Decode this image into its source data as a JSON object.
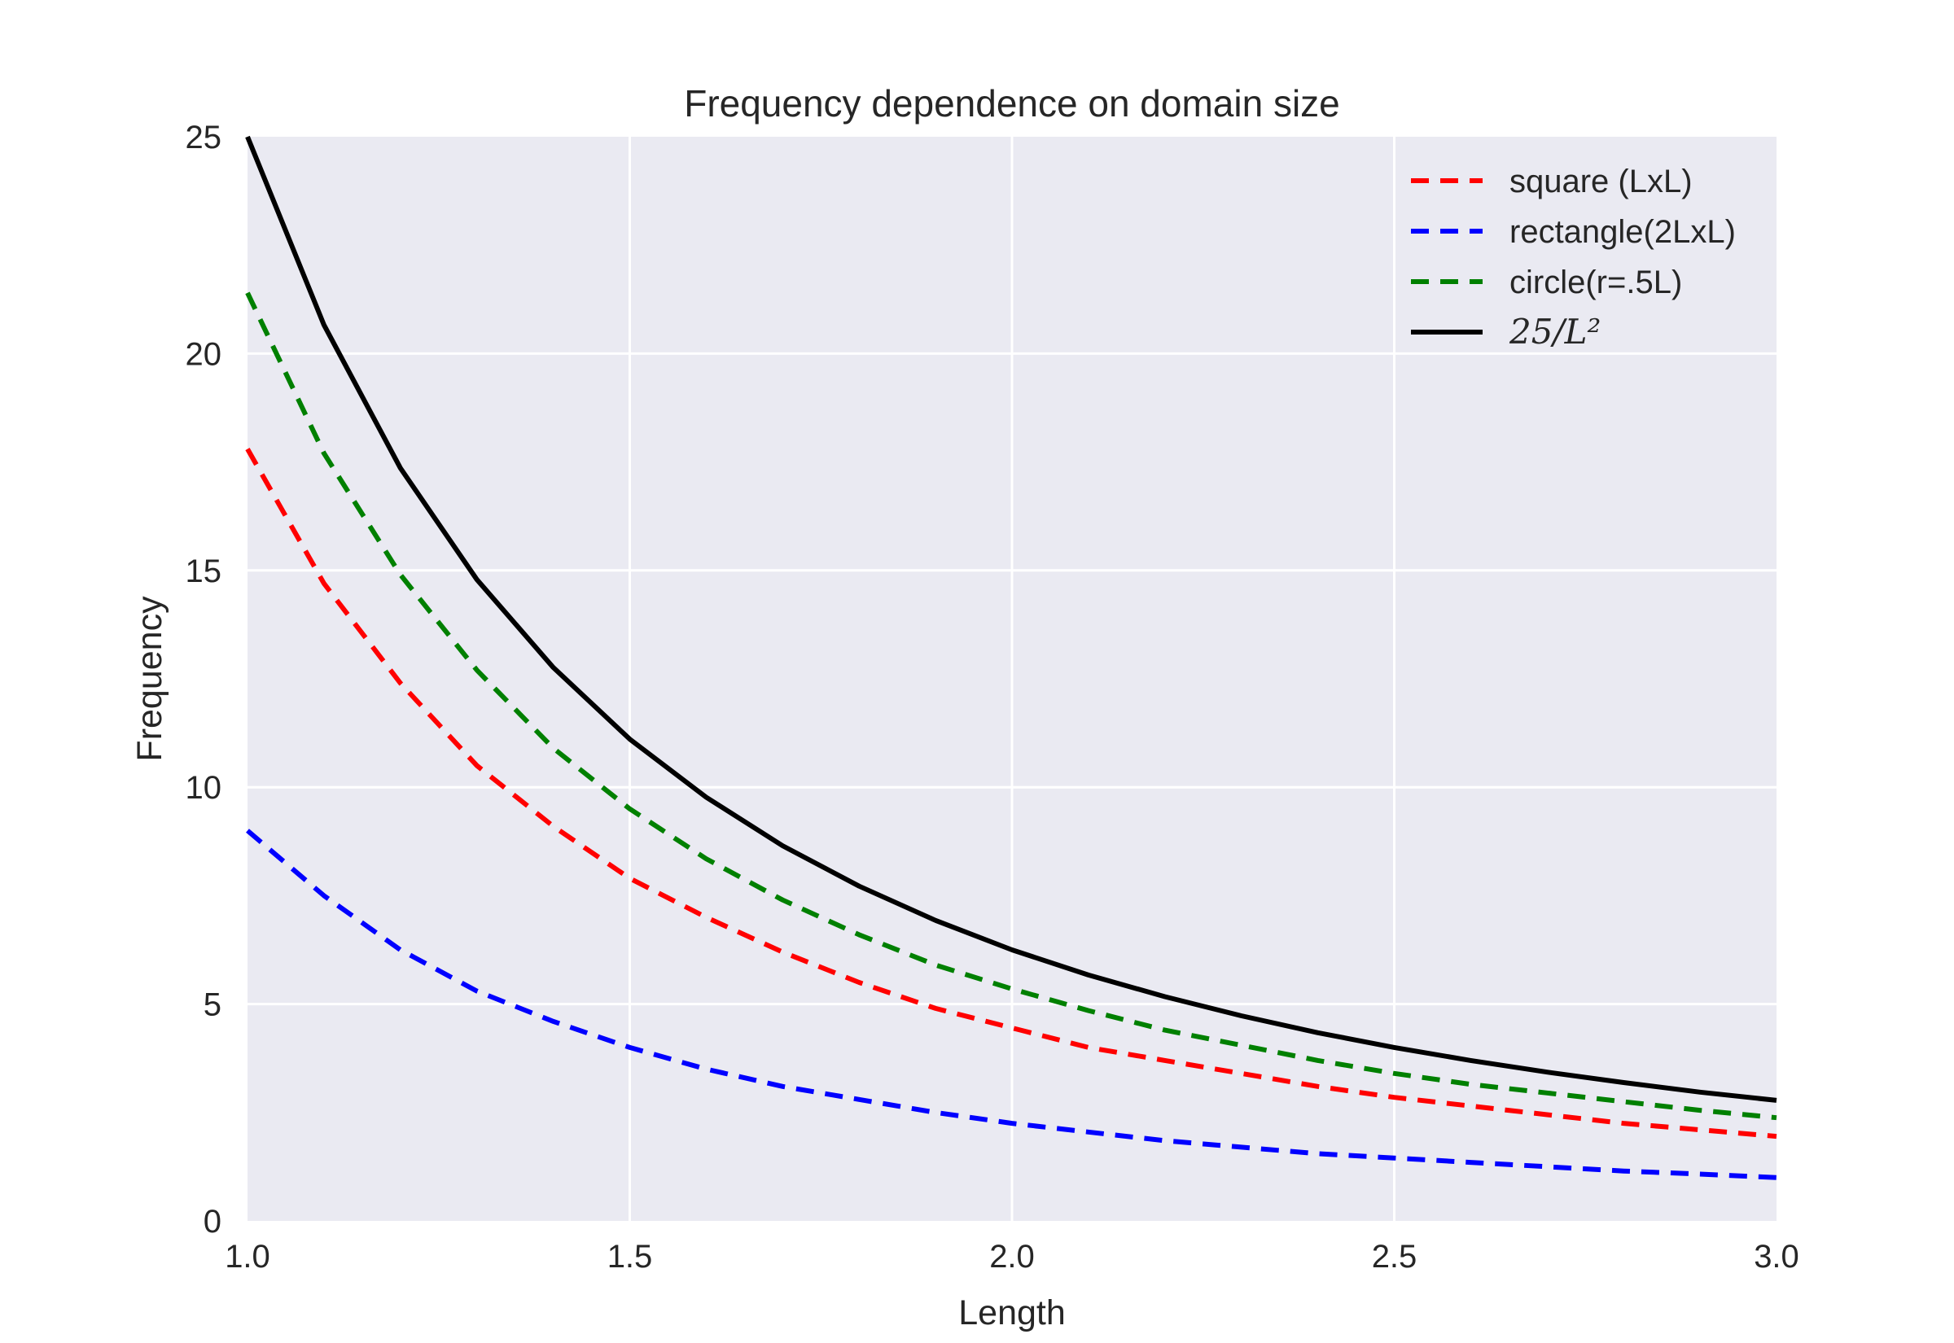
{
  "chart_data": {
    "type": "line",
    "title": "Frequency dependence on domain size",
    "xlabel": "Length",
    "ylabel": "Frequency",
    "xlim": [
      1.0,
      3.0
    ],
    "ylim": [
      0,
      25
    ],
    "xticks": [
      1.0,
      1.5,
      2.0,
      2.5,
      3.0
    ],
    "xtick_labels": [
      "1.0",
      "1.5",
      "2.0",
      "2.5",
      "3.0"
    ],
    "yticks": [
      0,
      5,
      10,
      15,
      20,
      25
    ],
    "ytick_labels": [
      "0",
      "5",
      "10",
      "15",
      "20",
      "25"
    ],
    "grid": true,
    "legend_position": "top-right",
    "x": [
      1.0,
      1.1,
      1.2,
      1.3,
      1.4,
      1.5,
      1.6,
      1.7,
      1.8,
      1.9,
      2.0,
      2.1,
      2.2,
      2.3,
      2.4,
      2.5,
      2.6,
      2.7,
      2.8,
      2.9,
      3.0
    ],
    "series": [
      {
        "name": "square (LxL)",
        "color": "#ff0000",
        "style": "dashed",
        "values": [
          17.8,
          14.7,
          12.4,
          10.5,
          9.1,
          7.9,
          7.0,
          6.2,
          5.5,
          4.9,
          4.45,
          4.0,
          3.7,
          3.4,
          3.1,
          2.85,
          2.65,
          2.45,
          2.25,
          2.1,
          1.95
        ]
      },
      {
        "name": "rectangle(2LxL)",
        "color": "#0000ff",
        "style": "dashed",
        "values": [
          9.0,
          7.5,
          6.25,
          5.3,
          4.6,
          4.0,
          3.5,
          3.1,
          2.8,
          2.5,
          2.25,
          2.05,
          1.85,
          1.7,
          1.55,
          1.45,
          1.35,
          1.25,
          1.15,
          1.08,
          1.0
        ]
      },
      {
        "name": "circle(r=.5L)",
        "color": "#008000",
        "style": "dashed",
        "values": [
          21.4,
          17.7,
          14.9,
          12.7,
          10.9,
          9.5,
          8.35,
          7.4,
          6.6,
          5.9,
          5.35,
          4.85,
          4.4,
          4.05,
          3.7,
          3.4,
          3.15,
          2.95,
          2.75,
          2.55,
          2.38
        ]
      },
      {
        "name": "25/L²",
        "color": "#000000",
        "style": "solid",
        "values": [
          25.0,
          20.66,
          17.36,
          14.79,
          12.76,
          11.11,
          9.77,
          8.65,
          7.72,
          6.93,
          6.25,
          5.67,
          5.17,
          4.73,
          4.34,
          4.0,
          3.7,
          3.43,
          3.19,
          2.97,
          2.78
        ]
      }
    ]
  }
}
